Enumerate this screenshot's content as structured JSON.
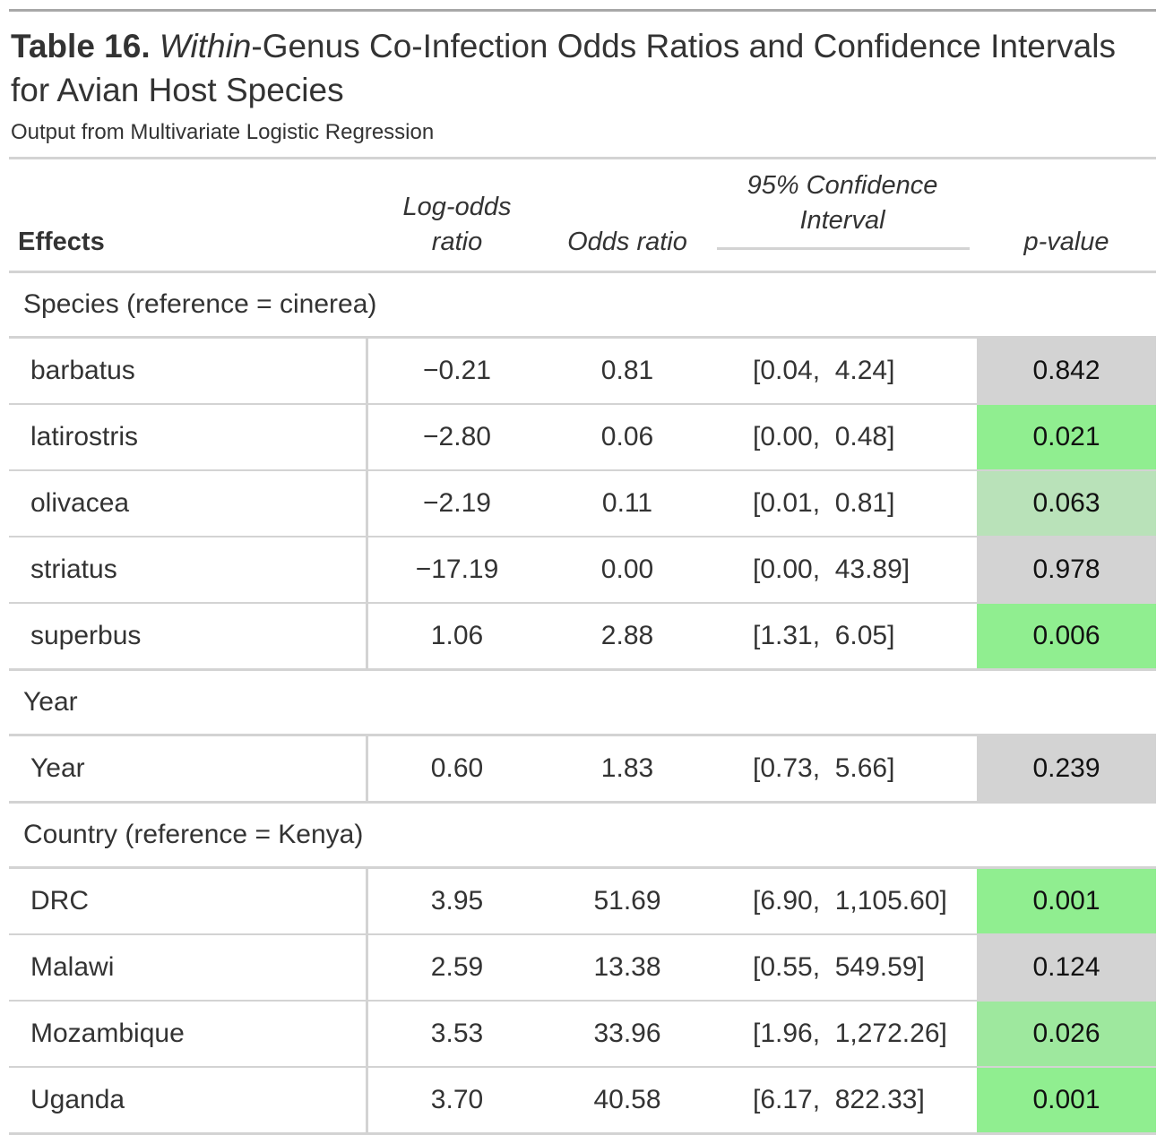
{
  "title": {
    "label": "Table 16.",
    "italic": "Within",
    "rest": "-Genus Co-Infection Odds Ratios and Confidence Intervals for Avian Host Species"
  },
  "subtitle": "Output from Multivariate Logistic Regression",
  "headers": {
    "effects": "Effects",
    "log_odds_1": "Log-odds",
    "log_odds_2": "ratio",
    "odds_ratio": "Odds ratio",
    "ci_1": "95% Confidence",
    "ci_2": "Interval",
    "p_value": "p-value"
  },
  "colors": {
    "p_high": "#d3d3d3",
    "p_sig": "#90ee90",
    "p_mid_sig": "#a2e8a2",
    "p_near": "#b8e0b8"
  },
  "groups": [
    {
      "label": "Species (reference = cinerea)",
      "rows": [
        {
          "effect": "barbatus",
          "lor": "−0.21",
          "or": "0.81",
          "ci": "[0.04,  4.24]",
          "p": "0.842",
          "p_color": "#d3d3d3"
        },
        {
          "effect": "latirostris",
          "lor": "−2.80",
          "or": "0.06",
          "ci": "[0.00,  0.48]",
          "p": "0.021",
          "p_color": "#90ee90"
        },
        {
          "effect": "olivacea",
          "lor": "−2.19",
          "or": "0.11",
          "ci": "[0.01,  0.81]",
          "p": "0.063",
          "p_color": "#b9e2b9"
        },
        {
          "effect": "striatus",
          "lor": "−17.19",
          "or": "0.00",
          "ci": "[0.00,  43.89]",
          "p": "0.978",
          "p_color": "#d3d3d3"
        },
        {
          "effect": "superbus",
          "lor": "1.06",
          "or": "2.88",
          "ci": "[1.31,  6.05]",
          "p": "0.006",
          "p_color": "#90ee90"
        }
      ]
    },
    {
      "label": "Year",
      "rows": [
        {
          "effect": "Year",
          "lor": "0.60",
          "or": "1.83",
          "ci": "[0.73,  5.66]",
          "p": "0.239",
          "p_color": "#d3d3d3"
        }
      ]
    },
    {
      "label": "Country (reference = Kenya)",
      "rows": [
        {
          "effect": "DRC",
          "lor": "3.95",
          "or": "51.69",
          "ci": "[6.90,  1,105.60]",
          "p": "0.001",
          "p_color": "#90ee90"
        },
        {
          "effect": "Malawi",
          "lor": "2.59",
          "or": "13.38",
          "ci": "[0.55,  549.59]",
          "p": "0.124",
          "p_color": "#d3d3d3"
        },
        {
          "effect": "Mozambique",
          "lor": "3.53",
          "or": "33.96",
          "ci": "[1.96,  1,272.26]",
          "p": "0.026",
          "p_color": "#9ee89e"
        },
        {
          "effect": "Uganda",
          "lor": "3.70",
          "or": "40.58",
          "ci": "[6.17,  822.33]",
          "p": "0.001",
          "p_color": "#90ee90"
        }
      ]
    }
  ]
}
